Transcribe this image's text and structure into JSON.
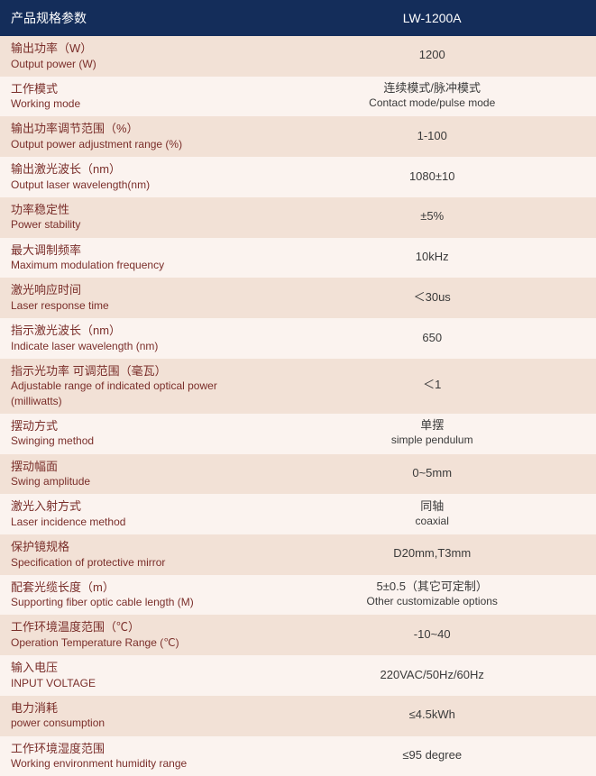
{
  "table": {
    "header_bg": "#142d5a",
    "header_color": "#ffffff",
    "row_even_bg": "#f2e1d6",
    "row_odd_bg": "#fbf3ef",
    "label_text_color": "#7a2e2a",
    "value_text_color": "#3a3a3a",
    "header": {
      "left": "产品规格参数",
      "right": "LW-1200A"
    },
    "rows": [
      {
        "cn": "输出功率（W）",
        "en": "Output power (W)",
        "val": "1200"
      },
      {
        "cn": "工作模式",
        "en": "Working mode",
        "val_cn": "连续模式/脉冲模式",
        "val_en": "Contact mode/pulse mode"
      },
      {
        "cn": "输出功率调节范围（%）",
        "en": "Output power adjustment range (%)",
        "val": "1-100"
      },
      {
        "cn": "输出激光波长（nm）",
        "en": "Output laser wavelength(nm)",
        "val": "1080±10"
      },
      {
        "cn": "功率稳定性",
        "en": "Power stability",
        "val": "±5%"
      },
      {
        "cn": "最大调制频率",
        "en": "Maximum modulation frequency",
        "val": "10kHz"
      },
      {
        "cn": "激光响应时间",
        "en": "Laser response time",
        "val": "＜30us"
      },
      {
        "cn": "指示激光波长（nm）",
        "en": "Indicate laser wavelength (nm)",
        "val": "650"
      },
      {
        "cn": "指示光功率  可调范围（毫瓦）",
        "en": "Adjustable range of indicated optical power (milliwatts)",
        "val": "＜1"
      },
      {
        "cn": "摆动方式",
        "en": "Swinging method",
        "val_cn": "单摆",
        "val_en": "simple pendulum"
      },
      {
        "cn": "摆动幅面",
        "en": "Swing amplitude",
        "val": "0~5mm"
      },
      {
        "cn": "激光入射方式",
        "en": "Laser incidence method",
        "val_cn": "同轴",
        "val_en": "coaxial"
      },
      {
        "cn": "保护镜规格",
        "en": "Specification of protective mirror",
        "val": "D20mm,T3mm"
      },
      {
        "cn": "配套光缆长度（m）",
        "en": "Supporting fiber optic cable length (M)",
        "val_cn": "5±0.5（其它可定制）",
        "val_en": "Other customizable options"
      },
      {
        "cn": "工作环境温度范围（℃）",
        "en": "Operation Temperature Range (℃)",
        "val": "-10~40"
      },
      {
        "cn": "输入电压",
        "en": "INPUT VOLTAGE",
        "val": "220VAC/50Hz/60Hz"
      },
      {
        "cn": "电力消耗",
        "en": "power consumption",
        "val": "≤4.5kWh"
      },
      {
        "cn": "工作环境湿度范围",
        "en": "Working environment humidity range",
        "val": "≤95 degree"
      }
    ]
  }
}
